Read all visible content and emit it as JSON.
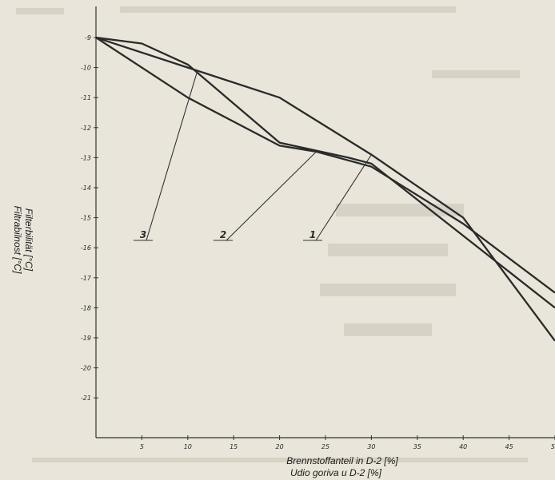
{
  "chart_data": {
    "type": "line",
    "xlabel": [
      "Brennstoffanteil in D-2 [%]",
      "Udio goriva u D-2 [%]"
    ],
    "ylabel": [
      "Filterbilität [°C]",
      "Filtrabilnost [°C]"
    ],
    "xlim": [
      0,
      100
    ],
    "ylim": [
      -22,
      -8.8
    ],
    "x_ticks": [
      10,
      20,
      30,
      40,
      50,
      60,
      70,
      80,
      90,
      100
    ],
    "x_tick_labels": [
      "5",
      "10",
      "15",
      "20",
      "25",
      "30",
      "35",
      "40",
      "45",
      "50"
    ],
    "y_ticks": [
      -9,
      -10,
      -11,
      -12,
      -13,
      -14,
      -15,
      -16,
      -17,
      -18,
      -19,
      -20,
      -21
    ],
    "y_tick_labels": [
      "-9",
      "-10",
      "-11",
      "-12",
      "-13",
      "-14",
      "-15",
      "-16",
      "-17",
      "-18",
      "-19",
      "-20",
      "-21"
    ],
    "series": [
      {
        "name": "1",
        "x": [
          0,
          20,
          40,
          60,
          80,
          100
        ],
        "y": [
          -9.0,
          -10.0,
          -11.0,
          -12.9,
          -15.0,
          -19.1
        ]
      },
      {
        "name": "2",
        "x": [
          0,
          20,
          40,
          48,
          60,
          80,
          100
        ],
        "y": [
          -9.0,
          -11.0,
          -12.6,
          -12.8,
          -13.3,
          -15.2,
          -17.5
        ]
      },
      {
        "name": "3",
        "x": [
          0,
          10,
          20,
          40,
          55,
          60,
          100
        ],
        "y": [
          -9.0,
          -9.2,
          -9.9,
          -12.5,
          -13.0,
          -13.2,
          -18.0
        ]
      }
    ]
  }
}
